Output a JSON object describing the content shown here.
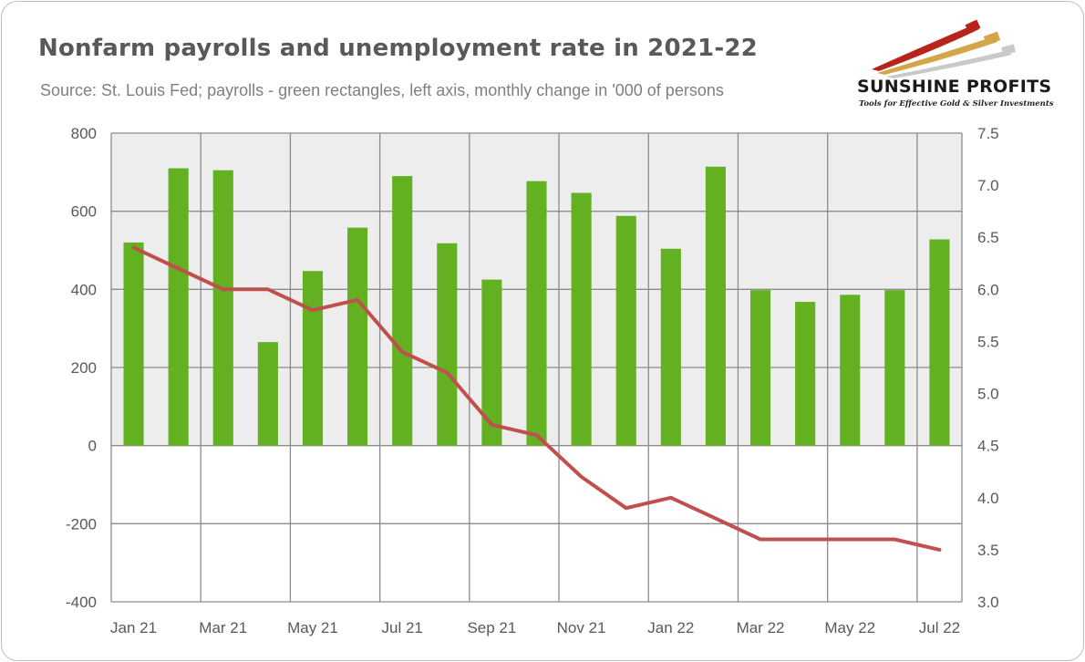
{
  "header": {
    "title": "Nonfarm payrolls and unemployment rate in 2021-22",
    "subtitle": "Source: St. Louis Fed; payrolls - green rectangles, left axis, monthly change in '000 of persons"
  },
  "logo": {
    "name": "SUNSHINE PROFITS",
    "tagline": "Tools for Effective Gold & Silver Investments"
  },
  "colors": {
    "bars": "#63b021",
    "line": "#c0504d",
    "grid": "#8c8c8c",
    "plot_background_top": "#ededed",
    "plot_background_bottom": "#ffffff"
  },
  "chart_data": {
    "type": "bar+line",
    "title": "Nonfarm payrolls and unemployment rate in 2021-22",
    "subtitle": "Source: St. Louis Fed; payrolls - green rectangles, left axis, monthly change in '000 of persons",
    "categories": [
      "Jan 21",
      "Feb 21",
      "Mar 21",
      "Apr 21",
      "May 21",
      "Jun 21",
      "Jul 21",
      "Aug 21",
      "Sep 21",
      "Oct 21",
      "Nov 21",
      "Dec 21",
      "Jan 22",
      "Feb 22",
      "Mar 22",
      "Apr 22",
      "May 22",
      "Jun 22",
      "Jul 22"
    ],
    "x_tick_labels": [
      "Jan 21",
      "Mar 21",
      "May 21",
      "Jul 21",
      "Sep 21",
      "Nov 21",
      "Jan 22",
      "Mar 22",
      "May 22",
      "Jul 22"
    ],
    "series": [
      {
        "type": "bar",
        "axis": "left",
        "values": [
          520,
          710,
          705,
          265,
          447,
          558,
          690,
          518,
          425,
          677,
          647,
          588,
          504,
          714,
          398,
          368,
          386,
          398,
          528
        ]
      },
      {
        "type": "line",
        "axis": "right",
        "values": [
          6.4,
          6.2,
          6.0,
          6.0,
          5.8,
          5.9,
          5.4,
          5.2,
          4.7,
          4.6,
          4.2,
          3.9,
          4.0,
          3.8,
          3.6,
          3.6,
          3.6,
          3.6,
          3.5
        ]
      }
    ],
    "y_left": {
      "min": -400,
      "max": 800,
      "ticks": [
        "800",
        "600",
        "400",
        "200",
        "0",
        "-200",
        "-400"
      ]
    },
    "y_right": {
      "min": 3.0,
      "max": 7.5,
      "ticks": [
        "7.5",
        "7.0",
        "6.5",
        "6.0",
        "5.5",
        "5.0",
        "4.5",
        "4.0",
        "3.5",
        "3.0"
      ]
    },
    "grid": true,
    "legend": "none"
  }
}
